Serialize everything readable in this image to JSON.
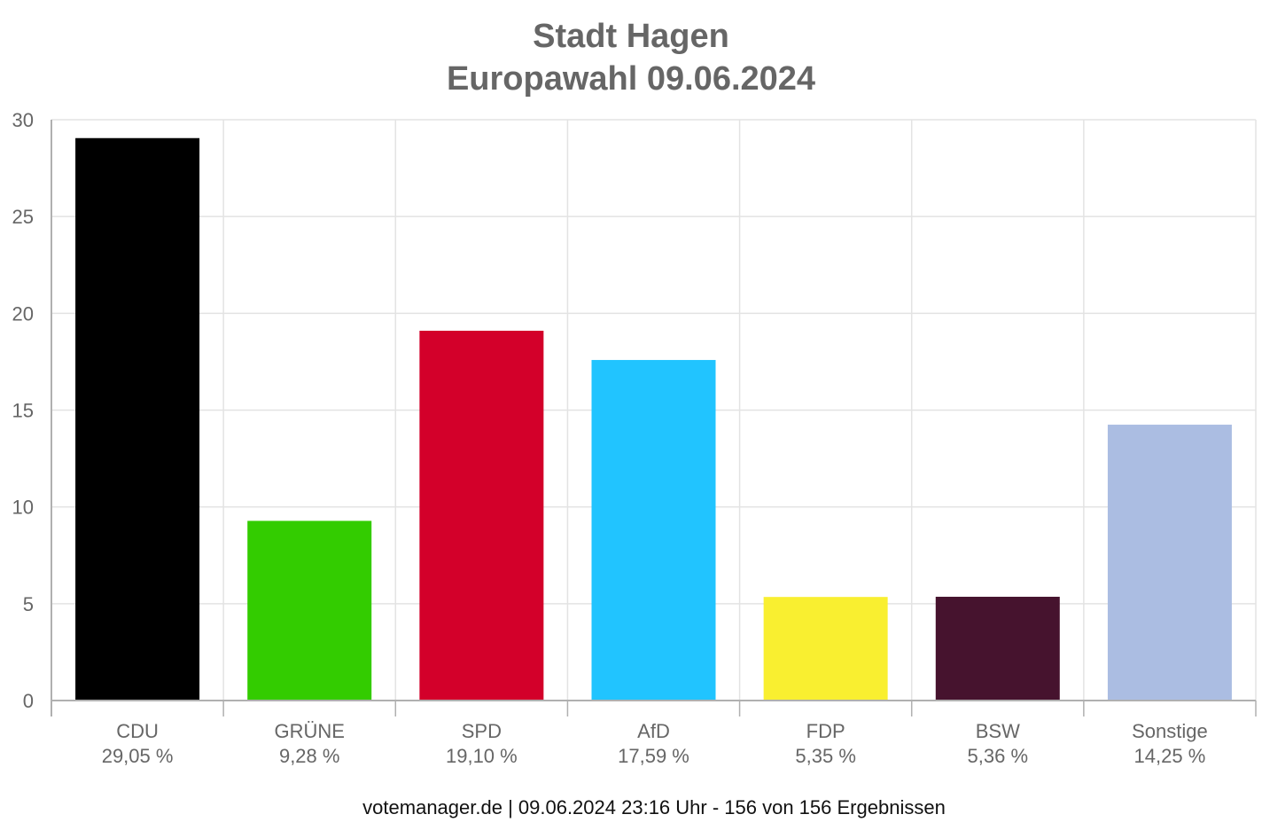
{
  "title_line_1": "Stadt Hagen",
  "title_line_2": "Europawahl 09.06.2024",
  "footer": "votemanager.de | 09.06.2024 23:16 Uhr - 156 von 156 Ergebnissen",
  "chart_data": {
    "type": "bar",
    "title": "Stadt Hagen Europawahl 09.06.2024",
    "xlabel": "",
    "ylabel": "",
    "ylim": [
      0,
      30
    ],
    "yticks": [
      "0",
      "5",
      "10",
      "15",
      "20",
      "25",
      "30"
    ],
    "grid": true,
    "categories": [
      "CDU",
      "GRÜNE",
      "SPD",
      "AfD",
      "FDP",
      "BSW",
      "Sonstige"
    ],
    "values": [
      29.05,
      9.28,
      19.1,
      17.59,
      5.35,
      5.36,
      14.25
    ],
    "value_labels": [
      "29,05 %",
      "9,28 %",
      "19,10 %",
      "17,59 %",
      "5,35 %",
      "5,36 %",
      "14,25 %"
    ],
    "colors": [
      "#000000",
      "#33cc00",
      "#d3002a",
      "#21c4ff",
      "#f9ef30",
      "#46132e",
      "#abbde2"
    ],
    "grid_color": "#e3e3e3",
    "axis_color": "#b0b0b0"
  }
}
